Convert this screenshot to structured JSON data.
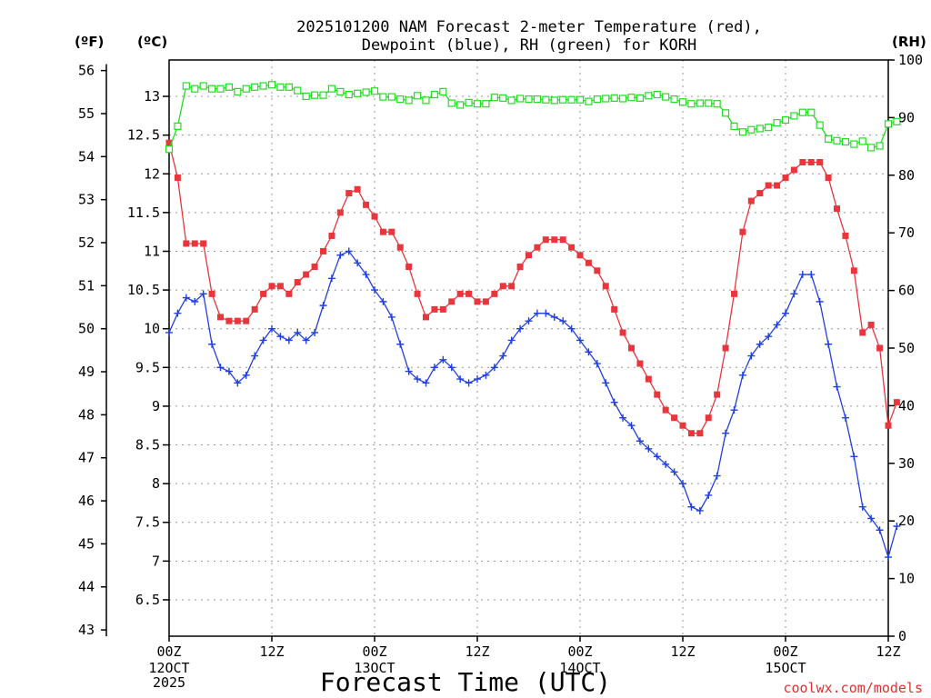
{
  "chart_data": {
    "type": "line",
    "title_line1": "2025101200 NAM Forecast 2-meter Temperature (red),",
    "title_line2": "Dewpoint (blue), RH (green) for KORH",
    "xlabel": "Forecast Time (UTC)",
    "credit": "coolwx.com/models",
    "units": {
      "left_f": "(ºF)",
      "left_c": "(ºC)",
      "right_rh": "(RH)"
    },
    "x_range_hours": [
      0,
      84
    ],
    "x_ticks": [
      {
        "hour": 0,
        "label": "00Z",
        "date1": "12OCT",
        "date2": "2025"
      },
      {
        "hour": 12,
        "label": "12Z",
        "date1": "",
        "date2": ""
      },
      {
        "hour": 24,
        "label": "00Z",
        "date1": "13OCT",
        "date2": ""
      },
      {
        "hour": 36,
        "label": "12Z",
        "date1": "",
        "date2": ""
      },
      {
        "hour": 48,
        "label": "00Z",
        "date1": "14OCT",
        "date2": ""
      },
      {
        "hour": 60,
        "label": "12Z",
        "date1": "",
        "date2": ""
      },
      {
        "hour": 72,
        "label": "00Z",
        "date1": "15OCT",
        "date2": ""
      },
      {
        "hour": 84,
        "label": "12Z",
        "date1": "",
        "date2": ""
      }
    ],
    "celsius_range": [
      6.03,
      13.47
    ],
    "celsius_ticks": [
      "6.5",
      "7",
      "7.5",
      "8",
      "8.5",
      "9",
      "9.5",
      "10",
      "10.5",
      "11",
      "11.5",
      "12",
      "12.5",
      "13"
    ],
    "fahrenheit_ticks": [
      "43",
      "44",
      "45",
      "46",
      "47",
      "48",
      "49",
      "50",
      "51",
      "52",
      "53",
      "54",
      "55",
      "56"
    ],
    "rh_range": [
      0,
      100
    ],
    "rh_ticks": [
      "0",
      "10",
      "20",
      "30",
      "40",
      "50",
      "60",
      "70",
      "80",
      "90",
      "100"
    ],
    "grid": true,
    "step_hours": 1,
    "series": [
      {
        "name": "Temperature",
        "color": "#e8363c",
        "marker": "filled-square",
        "values": [
          12.4,
          11.95,
          11.1,
          11.1,
          11.1,
          10.45,
          10.15,
          10.1,
          10.1,
          10.1,
          10.25,
          10.45,
          10.55,
          10.55,
          10.45,
          10.6,
          10.7,
          10.8,
          11.0,
          11.2,
          11.5,
          11.75,
          11.8,
          11.6,
          11.45,
          11.25,
          11.25,
          11.05,
          10.8,
          10.45,
          10.15,
          10.25,
          10.25,
          10.35,
          10.45,
          10.45,
          10.35,
          10.35,
          10.45,
          10.55,
          10.55,
          10.8,
          10.95,
          11.05,
          11.15,
          11.15,
          11.15,
          11.05,
          10.95,
          10.85,
          10.75,
          10.55,
          10.25,
          9.95,
          9.75,
          9.55,
          9.35,
          9.15,
          8.95,
          8.85,
          8.75,
          8.65,
          8.65,
          8.85,
          9.15,
          9.75,
          10.45,
          11.25,
          11.65,
          11.75,
          11.85,
          11.85,
          11.95,
          12.05,
          12.15,
          12.15,
          12.15,
          11.95,
          11.55,
          11.2,
          10.75,
          9.95,
          10.05,
          9.75,
          8.75,
          9.05
        ]
      },
      {
        "name": "Dewpoint",
        "color": "#2040e0",
        "marker": "plus",
        "values": [
          9.95,
          10.2,
          10.4,
          10.35,
          10.45,
          9.8,
          9.5,
          9.45,
          9.3,
          9.4,
          9.65,
          9.85,
          10.0,
          9.9,
          9.85,
          9.95,
          9.85,
          9.95,
          10.3,
          10.65,
          10.95,
          11.0,
          10.85,
          10.7,
          10.5,
          10.35,
          10.15,
          9.8,
          9.45,
          9.35,
          9.3,
          9.5,
          9.6,
          9.5,
          9.35,
          9.3,
          9.35,
          9.4,
          9.5,
          9.65,
          9.85,
          10.0,
          10.1,
          10.2,
          10.2,
          10.15,
          10.1,
          10.0,
          9.85,
          9.7,
          9.55,
          9.3,
          9.05,
          8.85,
          8.75,
          8.55,
          8.45,
          8.35,
          8.25,
          8.15,
          8.0,
          7.7,
          7.65,
          7.85,
          8.1,
          8.65,
          8.95,
          9.4,
          9.65,
          9.8,
          9.9,
          10.05,
          10.2,
          10.45,
          10.7,
          10.7,
          10.35,
          9.8,
          9.25,
          8.85,
          8.35,
          7.7,
          7.55,
          7.4,
          7.05,
          7.45
        ]
      },
      {
        "name": "RH",
        "color": "#22dd22",
        "marker": "open-square",
        "values": [
          84.5,
          88.5,
          95.5,
          95,
          95.5,
          95,
          95,
          95.3,
          94.5,
          95,
          95.3,
          95.5,
          95.7,
          95.3,
          95.3,
          94.7,
          93.7,
          93.9,
          93.9,
          95,
          94.5,
          94,
          94.2,
          94.4,
          94.6,
          93.6,
          93.6,
          93.2,
          93,
          93.8,
          93,
          94,
          94.5,
          92.5,
          92.2,
          92.6,
          92.4,
          92.4,
          93.5,
          93.4,
          93,
          93.3,
          93.2,
          93.2,
          93.1,
          93,
          93.1,
          93.1,
          93.1,
          92.8,
          93.2,
          93.3,
          93.4,
          93.3,
          93.5,
          93.4,
          93.8,
          94,
          93.6,
          93.2,
          92.7,
          92.4,
          92.5,
          92.5,
          92.4,
          90.8,
          88.5,
          87.5,
          87.9,
          88.1,
          88.3,
          89.1,
          89.6,
          90.3,
          90.9,
          90.9,
          88.7,
          86.3,
          86,
          85.8,
          85.4,
          85.9,
          84.8,
          85.1,
          88.9,
          89.3
        ]
      }
    ]
  }
}
